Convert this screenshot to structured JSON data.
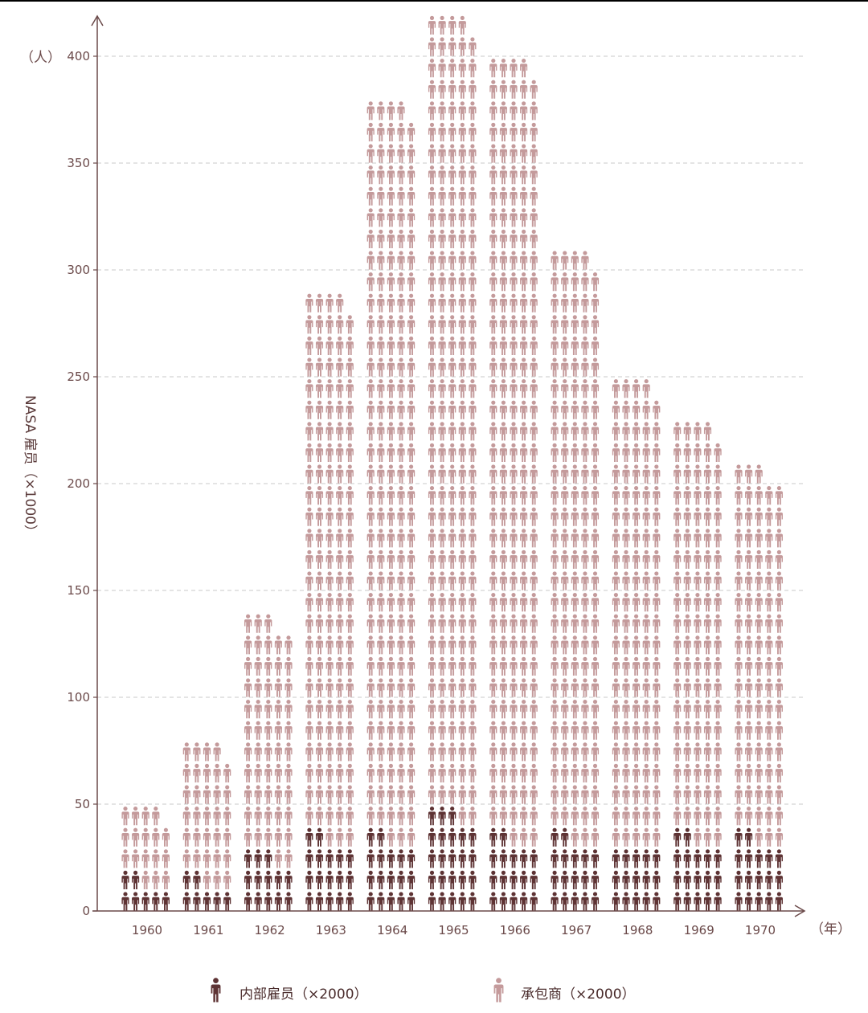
{
  "chart_data": {
    "type": "bar",
    "ylabel": "NASA 雇员（×1000）",
    "y_unit": "（人）",
    "x_unit": "（年）",
    "ylim": [
      0,
      420
    ],
    "yticks": [
      0,
      50,
      100,
      150,
      200,
      250,
      300,
      350,
      400
    ],
    "grid": true,
    "categories": [
      "1960",
      "1961",
      "1962",
      "1963",
      "1964",
      "1965",
      "1966",
      "1967",
      "1968",
      "1969",
      "1970"
    ],
    "series": [
      {
        "name": "内部雇员（×2000）",
        "values": [
          14,
          14,
          26,
          34,
          34,
          46,
          34,
          34,
          30,
          34,
          34
        ]
      },
      {
        "name": "承包商（×2000）",
        "values": [
          34,
          64,
          110,
          254,
          344,
          372,
          364,
          274,
          218,
          194,
          172
        ]
      }
    ],
    "totals": [
      48,
      78,
      136,
      288,
      378,
      418,
      398,
      308,
      248,
      228,
      206
    ],
    "people_per_icon": 2000,
    "legend_position": "bottom",
    "colors": {
      "employee": "#5e3334",
      "contractor": "#c49a9b",
      "axis": "#6b4a4a",
      "grid": "#c8c8c8"
    }
  }
}
